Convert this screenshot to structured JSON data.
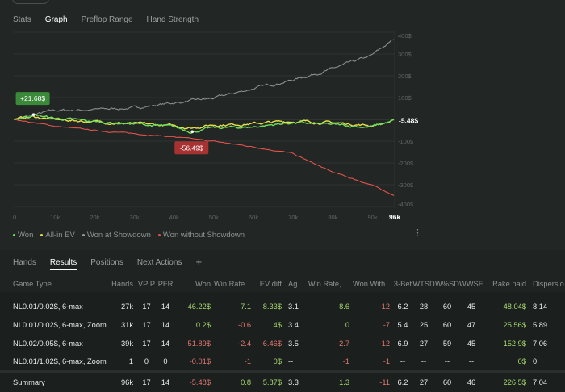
{
  "top_tabs": [
    "Stats",
    "Graph",
    "Preflop Range",
    "Hand Strength"
  ],
  "top_active": 1,
  "chart_data": {
    "type": "line",
    "x_unit": "k hands",
    "xlim": [
      0,
      96
    ],
    "ylim": [
      -400,
      400
    ],
    "x_ticks": [
      "0",
      "10k",
      "20k",
      "30k",
      "40k",
      "50k",
      "60k",
      "70k",
      "80k",
      "90k"
    ],
    "x_end_label": "96k",
    "y_ticks": [
      "400$",
      "300$",
      "200$",
      "100$",
      "-100$",
      "-200$",
      "-300$",
      "-400$"
    ],
    "y_tick_values": [
      400,
      300,
      200,
      100,
      -100,
      -200,
      -300,
      -400
    ],
    "end_value_label": "-5.48$",
    "annotations": [
      {
        "label": "+21.68$",
        "x": 5,
        "y": 21.68,
        "color": "#3a8a3a"
      },
      {
        "label": "-56.49$",
        "x": 45,
        "y": -56.49,
        "color": "#a83232"
      }
    ],
    "series": [
      {
        "name": "Won",
        "color": "#6ee05a",
        "x": [
          0,
          5,
          10,
          20,
          30,
          40,
          45,
          50,
          60,
          70,
          80,
          90,
          96
        ],
        "y": [
          0,
          21.68,
          5,
          -10,
          -20,
          -35,
          -56.49,
          -40,
          -35,
          -15,
          -25,
          -35,
          -5.48
        ]
      },
      {
        "name": "All-in EV",
        "color": "#e8e04a",
        "x": [
          0,
          5,
          10,
          20,
          30,
          40,
          45,
          50,
          60,
          70,
          80,
          90,
          96
        ],
        "y": [
          0,
          12,
          0,
          -10,
          -20,
          -30,
          -38,
          -25,
          -20,
          -8,
          -15,
          -28,
          -8
        ]
      },
      {
        "name": "Won at Showdown",
        "color": "#8a8e8c",
        "x": [
          0,
          5,
          10,
          20,
          30,
          40,
          50,
          60,
          70,
          80,
          90,
          93,
          96
        ],
        "y": [
          0,
          20,
          40,
          45,
          52,
          75,
          95,
          140,
          180,
          230,
          290,
          330,
          370
        ]
      },
      {
        "name": "Won without Showdown",
        "color": "#e0524a",
        "x": [
          0,
          10,
          20,
          30,
          40,
          45,
          50,
          60,
          70,
          80,
          90,
          96
        ],
        "y": [
          0,
          -30,
          -50,
          -65,
          -80,
          -90,
          -100,
          -125,
          -155,
          -240,
          -300,
          -350
        ]
      }
    ]
  },
  "legend": [
    "Won",
    "All-in EV",
    "Won at Showdown",
    "Won without Showdown"
  ],
  "bottom_tabs": [
    "Hands",
    "Results",
    "Positions",
    "Next Actions"
  ],
  "bottom_active": 1,
  "add_tab": "+",
  "table": {
    "headers": [
      "Game Type",
      "Hands",
      "VPIP",
      "PFR",
      "Won",
      "Win Rate ...",
      "EV diff",
      "Ag.",
      "Win Rate, ...",
      "Won With...",
      "3-Bet",
      "WTSD",
      "W%SD",
      "WWSF%",
      "Rake paid",
      "Dispersio..."
    ],
    "rows": [
      [
        "NL0.01/0.02$, 6-max",
        "27k",
        "17",
        "14",
        "46.22$",
        "7.1",
        "8.33$",
        "3.1",
        "8.6",
        "-12",
        "6.2",
        "28",
        "60",
        "45",
        "48.04$",
        "8.14"
      ],
      [
        "NL0.01/0.02$, 6-max, Zoom",
        "31k",
        "17",
        "14",
        "0.2$",
        "-0.6",
        "4$",
        "3.4",
        "0",
        "-7",
        "5.4",
        "25",
        "60",
        "47",
        "25.56$",
        "5.89"
      ],
      [
        "NL0.02/0.05$, 6-max",
        "39k",
        "17",
        "14",
        "-51.89$",
        "-2.4",
        "-6.46$",
        "3.5",
        "-2.7",
        "-12",
        "6.9",
        "27",
        "59",
        "45",
        "152.9$",
        "7.06"
      ],
      [
        "NL0.01/1.02$, 6-max, Zoom",
        "1",
        "0",
        "0",
        "-0.01$",
        "-1",
        "0$",
        "--",
        "-1",
        "-1",
        "--",
        "--",
        "--",
        "--",
        "0$",
        "0"
      ]
    ],
    "summary": [
      "Summary",
      "96k",
      "17",
      "14",
      "-5.48$",
      "0.8",
      "5.87$",
      "3.3",
      "1.3",
      "-11",
      "6.2",
      "27",
      "60",
      "46",
      "226.5$",
      "7.04"
    ]
  }
}
